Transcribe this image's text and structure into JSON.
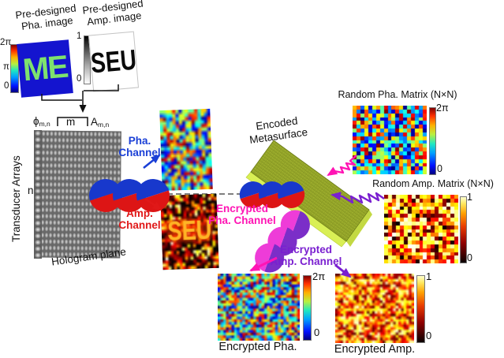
{
  "predesigned": {
    "pha": {
      "title1": "Pre-designed",
      "title2": "Pha. image",
      "text": "ME",
      "cbar_top": "2π",
      "cbar_mid": "π",
      "cbar_bottom": "0"
    },
    "amp": {
      "title1": "Pre-designed",
      "title2": "Amp. image",
      "text": "SEU",
      "cbar_top": "1",
      "cbar_bottom": "0"
    }
  },
  "transducer": {
    "phi": "ϕ",
    "phi_sub": "m,n",
    "m": "m",
    "a": "A",
    "a_sub": "m,n",
    "label": "Transducer Arrays",
    "n": "n",
    "plane": "Hologram plane"
  },
  "channels": {
    "pha": {
      "l1": "Pha.",
      "l2": "Channel"
    },
    "amp": {
      "l1": "Amp.",
      "l2": "Channel"
    },
    "enc_pha": {
      "l1": "Encrypted",
      "l2": "Pha. Channel"
    },
    "enc_amp": {
      "l1": "Encrypted",
      "l2": "Amp. Channel"
    }
  },
  "metasurface": {
    "l1": "Encoded",
    "l2": "Metasurface"
  },
  "keys": {
    "pha": {
      "title": "Random Pha. Matrix (N×N)",
      "cbar_top": "2π",
      "cbar_bottom": "0"
    },
    "amp": {
      "title": "Random Amp. Matrix (N×N)",
      "cbar_top": "1",
      "cbar_bottom": "0"
    }
  },
  "outputs": {
    "pha": {
      "label": "Encrypted Pha.",
      "cbar_top": "2π",
      "cbar_bottom": "0"
    },
    "amp": {
      "label": "Encrypted Amp.",
      "cbar_top": "1",
      "cbar_bottom": "0"
    }
  },
  "colors": {
    "pha_channel": "#1a3fd6",
    "amp_channel": "#e01818",
    "enc_pha_channel": "#ff14b4",
    "enc_amp_channel": "#7a1fd0",
    "pha_image_bg": "#1414cf",
    "pha_image_text": "#7ee26e",
    "metasurface_green": "#a3b430",
    "helix_blue": "#1838cc",
    "helix_red": "#dd1515",
    "helix_magenta": "#ee3cd8",
    "helix_purple": "#7b2ec8"
  },
  "textures": {
    "holo_pha": {
      "cmap": "jet",
      "nx": 16,
      "ny": 22,
      "seed": 11,
      "pixelated": false
    },
    "holo_amp": {
      "cmap": "hot",
      "nx": 20,
      "ny": 24,
      "seed": 21,
      "pixelated": false,
      "bias": 2.6,
      "text": "SEU",
      "text_size": 34,
      "text_color": "#ffb525",
      "text_glow": "#ff4000"
    },
    "key_pha": {
      "cmap": "jet",
      "nx": 19,
      "ny": 18,
      "seed": 5,
      "pixelated": true
    },
    "key_amp": {
      "cmap": "hot",
      "nx": 19,
      "ny": 18,
      "seed": 9,
      "pixelated": true
    },
    "enc_pha": {
      "cmap": "jet",
      "nx": 30,
      "ny": 25,
      "seed": 3,
      "pixelated": false
    },
    "enc_amp": {
      "cmap": "hot",
      "nx": 30,
      "ny": 26,
      "seed": 7,
      "pixelated": false,
      "bias": 1.2,
      "lo": 0.12,
      "hi": 0.95
    }
  }
}
